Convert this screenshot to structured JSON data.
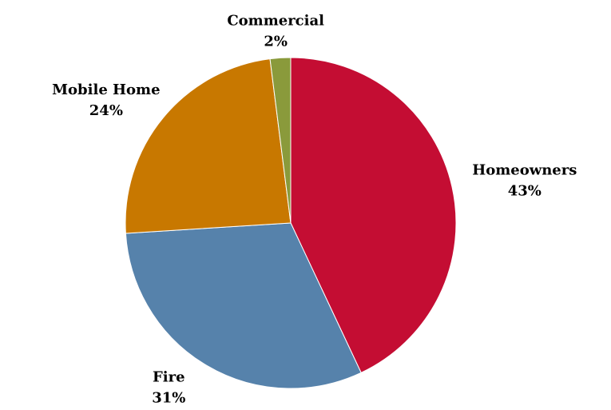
{
  "chart_data": {
    "type": "pie",
    "categories": [
      "Homeowners",
      "Fire",
      "Mobile Home",
      "Commercial"
    ],
    "values": [
      43,
      31,
      24,
      2
    ],
    "value_labels": [
      "43%",
      "31%",
      "24%",
      "2%"
    ],
    "colors": [
      "#c40d33",
      "#5682ab",
      "#c87800",
      "#8a9a3b"
    ]
  }
}
